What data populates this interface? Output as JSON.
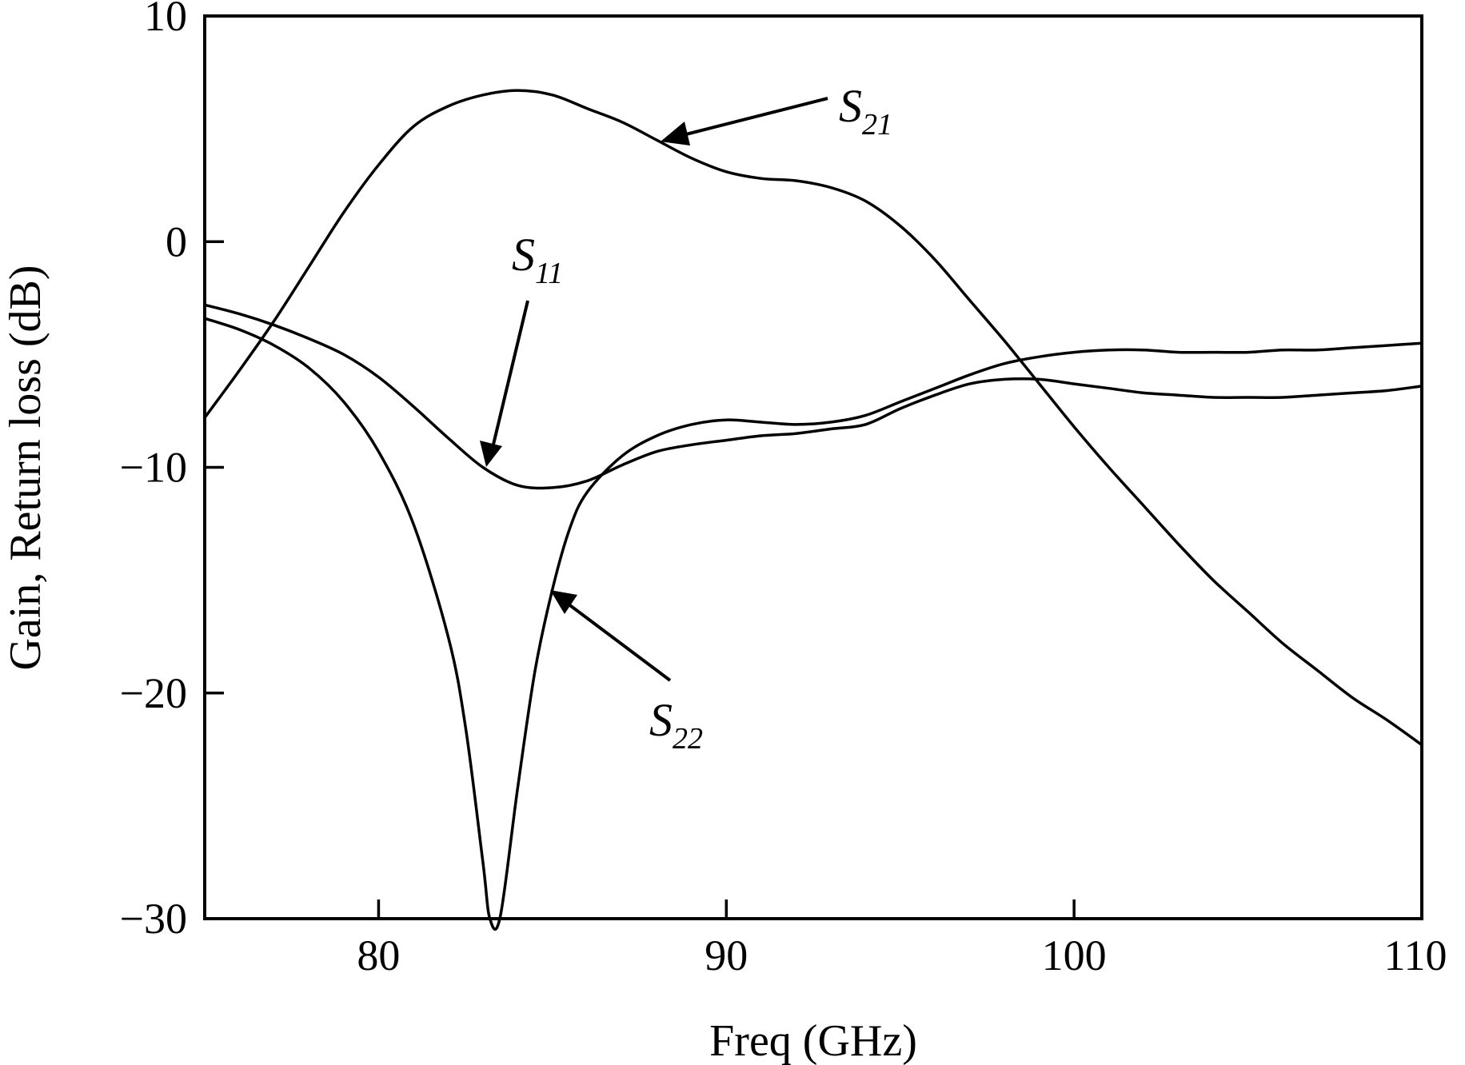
{
  "chart_data": {
    "type": "line",
    "xlabel": "Freq (GHz)",
    "ylabel": "Gain, Return loss (dB)",
    "xlim": [
      75,
      110
    ],
    "ylim": [
      -30,
      10
    ],
    "xticks": [
      80,
      90,
      100,
      110
    ],
    "yticks": [
      10,
      0,
      -10,
      -20,
      -30
    ],
    "xtick_labels": [
      "80",
      "90",
      "100",
      "110"
    ],
    "ytick_labels": [
      "10",
      "0",
      "−10",
      "−20",
      "−30"
    ],
    "grid": false,
    "series": [
      {
        "name": "S21",
        "label_main": "S",
        "label_sub": "21",
        "x": [
          75,
          76,
          77,
          78,
          79,
          80,
          81,
          82,
          83,
          84,
          85,
          86,
          87,
          88,
          89,
          90,
          91,
          92,
          93,
          94,
          95,
          96,
          97,
          98,
          99,
          100,
          101,
          102,
          103,
          104,
          105,
          106,
          107,
          108,
          109,
          110
        ],
        "y": [
          -7.8,
          -5.7,
          -3.5,
          -1.1,
          1.3,
          3.4,
          5.1,
          6.0,
          6.5,
          6.7,
          6.5,
          5.9,
          5.3,
          4.5,
          3.7,
          3.1,
          2.8,
          2.7,
          2.4,
          1.8,
          0.7,
          -0.8,
          -2.6,
          -4.4,
          -6.3,
          -8.2,
          -10.0,
          -11.7,
          -13.4,
          -15.0,
          -16.4,
          -17.8,
          -19.0,
          -20.2,
          -21.2,
          -22.3
        ]
      },
      {
        "name": "S11",
        "label_main": "S",
        "label_sub": "11",
        "x": [
          75,
          76,
          77,
          78,
          79,
          80,
          81,
          82,
          83,
          84,
          85,
          86,
          87,
          88,
          89,
          90,
          91,
          92,
          93,
          94,
          95,
          96,
          97,
          98,
          99,
          100,
          101,
          102,
          103,
          104,
          105,
          106,
          107,
          108,
          109,
          110
        ],
        "y": [
          -2.8,
          -3.2,
          -3.7,
          -4.3,
          -5.0,
          -6.0,
          -7.3,
          -8.7,
          -10.0,
          -10.8,
          -10.9,
          -10.6,
          -9.9,
          -9.3,
          -9.0,
          -8.8,
          -8.6,
          -8.5,
          -8.3,
          -8.1,
          -7.4,
          -6.8,
          -6.3,
          -6.1,
          -6.1,
          -6.3,
          -6.5,
          -6.7,
          -6.8,
          -6.9,
          -6.9,
          -6.9,
          -6.8,
          -6.7,
          -6.6,
          -6.4
        ]
      },
      {
        "name": "S22",
        "label_main": "S",
        "label_sub": "22",
        "x": [
          75,
          76,
          77,
          78,
          79,
          80,
          81,
          82,
          82.5,
          83,
          83.2,
          83.5,
          84,
          84.5,
          85,
          85.5,
          86,
          87,
          88,
          89,
          90,
          91,
          92,
          93,
          94,
          95,
          96,
          97,
          98,
          99,
          100,
          101,
          102,
          103,
          104,
          105,
          106,
          107,
          108,
          109,
          110
        ],
        "y": [
          -3.4,
          -3.9,
          -4.6,
          -5.6,
          -7.1,
          -9.3,
          -12.5,
          -17.5,
          -21.5,
          -27.5,
          -30.0,
          -29.9,
          -24.2,
          -19.0,
          -15.4,
          -12.7,
          -11.1,
          -9.5,
          -8.6,
          -8.1,
          -7.9,
          -8.0,
          -8.1,
          -8.0,
          -7.7,
          -7.1,
          -6.5,
          -5.9,
          -5.4,
          -5.1,
          -4.9,
          -4.8,
          -4.8,
          -4.9,
          -4.9,
          -4.9,
          -4.8,
          -4.8,
          -4.7,
          -4.6,
          -4.5
        ]
      }
    ]
  }
}
